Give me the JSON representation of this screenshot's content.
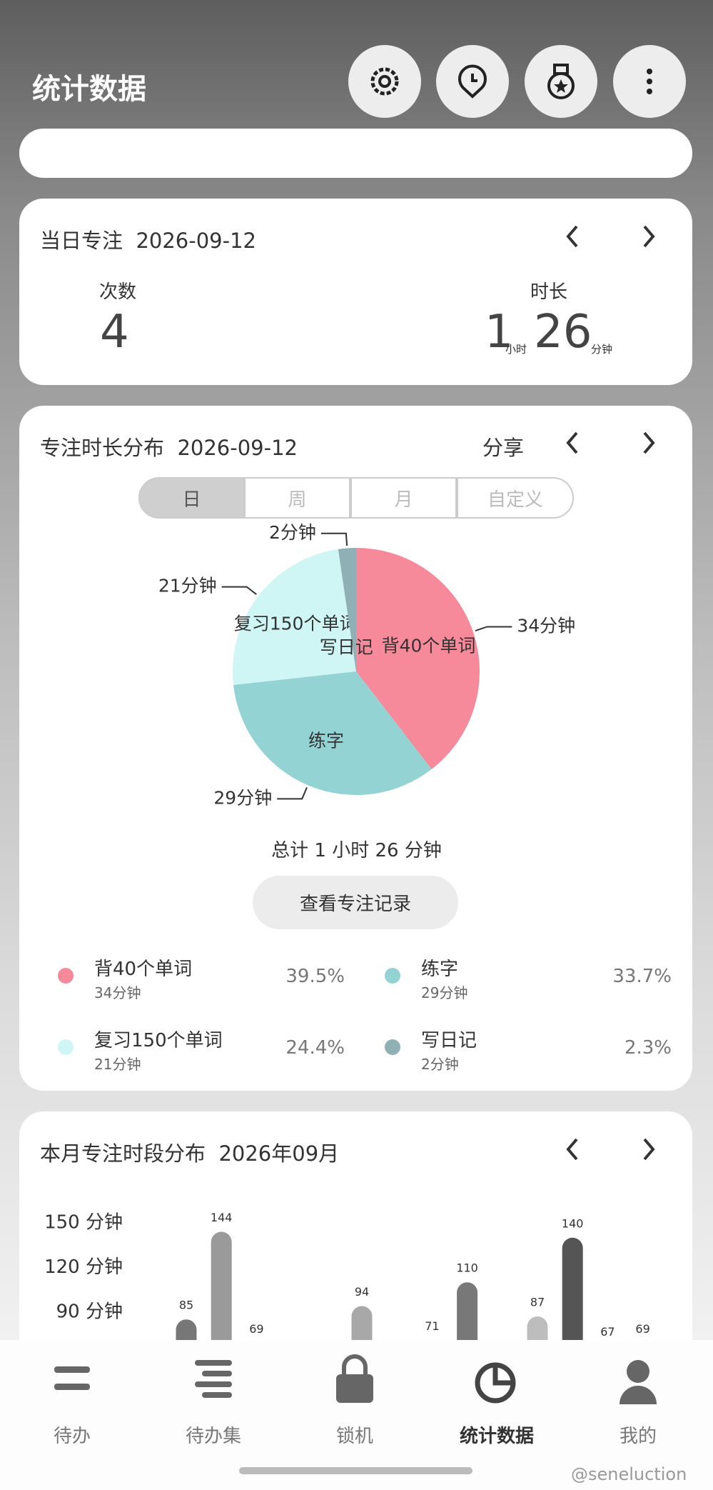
{
  "header": {
    "title": "统计数据"
  },
  "daily": {
    "title": "当日专注",
    "date": "2026-09-12",
    "count_label": "次数",
    "count": 4,
    "duration_label": "时长",
    "hours": 1,
    "hours_unit": "小时",
    "minutes": 26,
    "minutes_unit": "分钟"
  },
  "distribution": {
    "title": "专注时长分布",
    "date": "2026-09-12",
    "share": "分享",
    "tabs": [
      "日",
      "周",
      "月",
      "自定义"
    ],
    "total": "总计 1 小时 26 分钟",
    "button": "查看专注记录",
    "legend_percents": [
      "39.5%",
      "33.7%",
      "24.4%",
      "2.3%"
    ]
  },
  "monthly": {
    "title": "本月专注时段分布",
    "date": "2026年09月"
  },
  "nav": [
    "待办",
    "待办集",
    "锁机",
    "统计数据",
    "我的"
  ],
  "watermark": "@seneluction",
  "chart_data": [
    {
      "type": "pie",
      "categories": [
        "背40个单词",
        "练字",
        "复习150个单词",
        "写日记"
      ],
      "values": [
        34,
        29,
        21,
        2
      ],
      "value_labels": [
        "34分钟",
        "29分钟",
        "21分钟",
        "2分钟"
      ],
      "colors": [
        "#f78a9a",
        "#93d3d3",
        "#cff5f5",
        "#8fb0b5"
      ]
    },
    {
      "type": "bar",
      "categories": [
        null,
        null,
        null,
        null,
        null,
        null,
        null,
        null,
        null,
        null,
        null,
        null,
        null,
        null
      ],
      "values": [
        85,
        144,
        69,
        null,
        null,
        94,
        null,
        71,
        110,
        null,
        87,
        140,
        67,
        69
      ],
      "colors": [
        "#777777",
        "#9a9a9a",
        "#8a8a8a",
        null,
        null,
        "#a8a8a8",
        null,
        "#999999",
        "#787878",
        null,
        "#bdbdbd",
        "#555555",
        "#888888",
        "#999999"
      ],
      "ylim": [
        0,
        150
      ],
      "yticks": [
        {
          "value": 150,
          "label": "150 分钟"
        },
        {
          "value": 120,
          "label": "120 分钟"
        },
        {
          "value": 90,
          "label": "90 分钟"
        }
      ]
    }
  ]
}
